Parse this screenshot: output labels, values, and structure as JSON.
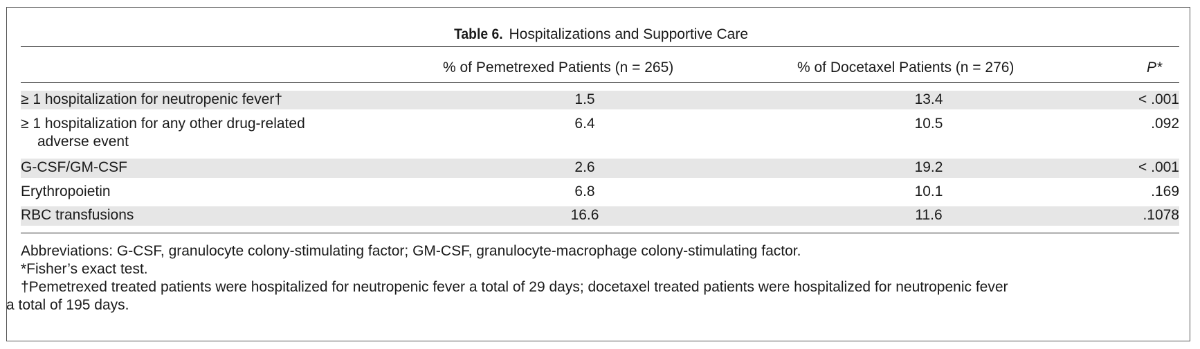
{
  "table": {
    "number_label": "Table 6.",
    "title": "Hospitalizations and Supportive Care",
    "columns": {
      "pemetrexed": "% of Pemetrexed Patients (n = 265)",
      "docetaxel": "% of Docetaxel Patients (n = 276)",
      "p_value": "P*"
    },
    "rows": [
      {
        "label": "≥ 1 hospitalization for neutropenic fever†",
        "label_cont": "",
        "pemetrexed": "1.5",
        "docetaxel": "13.4",
        "p": "< .001"
      },
      {
        "label": "≥ 1 hospitalization for any other drug-related",
        "label_cont": "adverse event",
        "pemetrexed": "6.4",
        "docetaxel": "10.5",
        "p": ".092"
      },
      {
        "label": "G-CSF/GM-CSF",
        "label_cont": "",
        "pemetrexed": "2.6",
        "docetaxel": "19.2",
        "p": "< .001"
      },
      {
        "label": "Erythropoietin",
        "label_cont": "",
        "pemetrexed": "6.8",
        "docetaxel": "10.1",
        "p": ".169"
      },
      {
        "label": "RBC transfusions",
        "label_cont": "",
        "pemetrexed": "16.6",
        "docetaxel": "11.6",
        "p": ".1078"
      }
    ]
  },
  "footnotes": {
    "abbreviations": "Abbreviations: G-CSF, granulocyte colony-stimulating factor; GM-CSF, granulocyte-macrophage colony-stimulating factor.",
    "fisher": "*Fisher’s exact test.",
    "dagger_line1": "†Pemetrexed treated patients were hospitalized for neutropenic fever a total of 29 days; docetaxel treated patients were hospitalized for neutropenic fever",
    "dagger_line2": "a total of 195 days."
  },
  "colors": {
    "shade": "#e6e6e6",
    "rule": "#222222",
    "border": "#555555"
  }
}
